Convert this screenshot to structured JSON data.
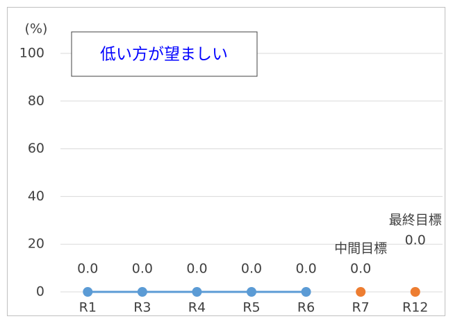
{
  "chart_data": {
    "type": "line",
    "y_label": "(%)",
    "note": "低い方が望ましい",
    "categories": [
      "R1",
      "R3",
      "R4",
      "R5",
      "R6",
      "R7",
      "R12"
    ],
    "series": [
      {
        "color": "#5b9bd5",
        "line": true,
        "values": [
          0,
          0,
          0,
          0,
          0,
          null,
          null
        ],
        "value_labels": [
          "0.0",
          "0.0",
          "0.0",
          "0.0",
          "0.0",
          null,
          null
        ]
      },
      {
        "color": "#ed7d31",
        "line": false,
        "values": [
          null,
          null,
          null,
          null,
          null,
          0,
          0
        ],
        "value_labels": [
          null,
          null,
          null,
          null,
          null,
          "0.0",
          "0.0"
        ],
        "point_labels": [
          null,
          null,
          null,
          null,
          null,
          "中間目標",
          "最終目標"
        ]
      }
    ],
    "ylim": [
      0,
      100
    ],
    "yticks": [
      0,
      20,
      40,
      60,
      80,
      100
    ],
    "grid": true
  }
}
